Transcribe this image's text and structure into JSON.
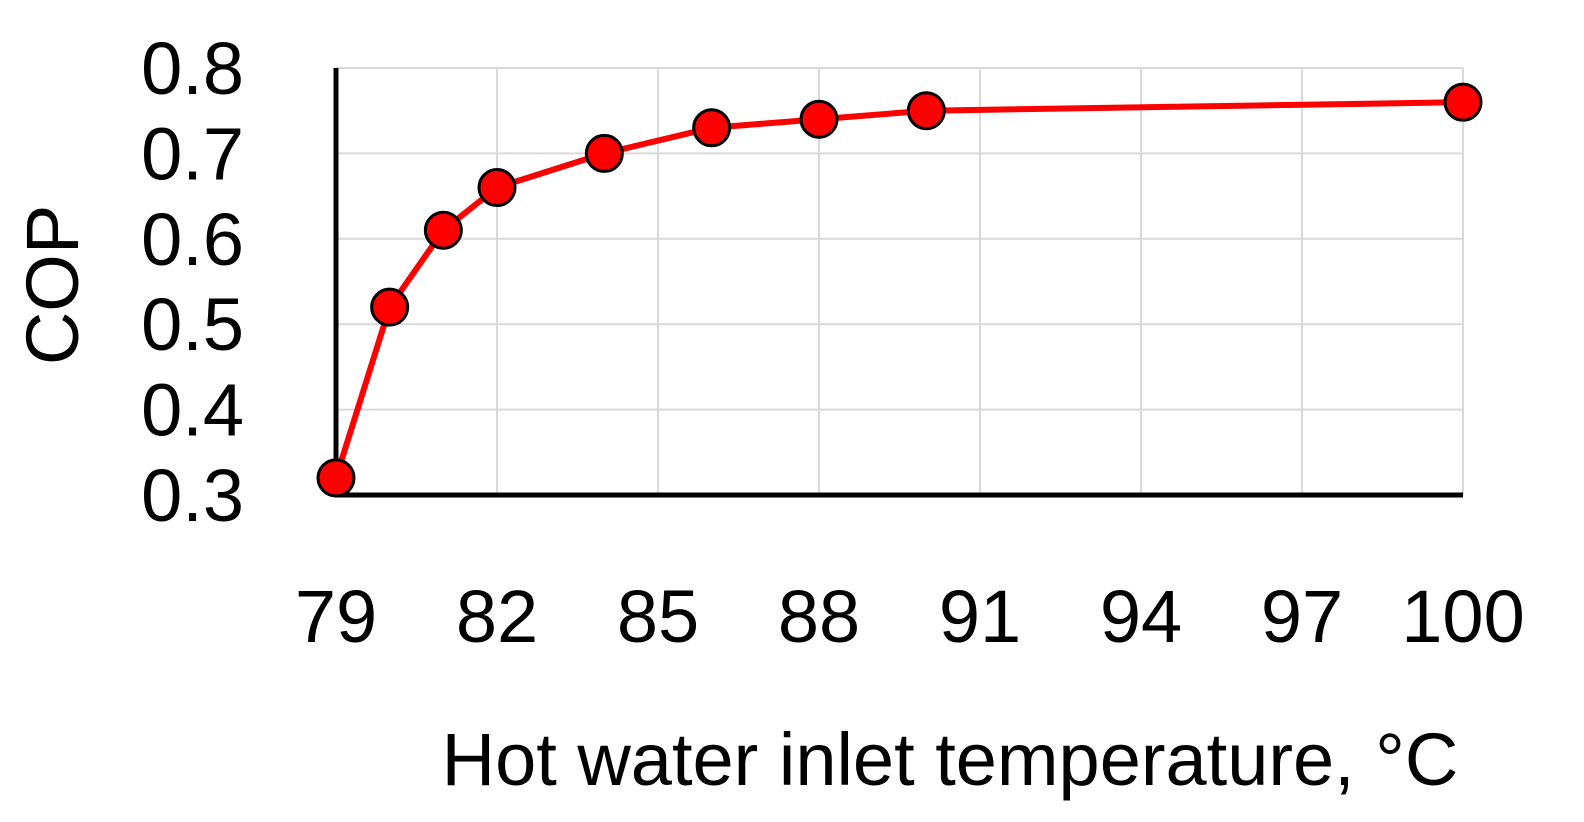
{
  "chart_data": {
    "type": "line",
    "xlabel": "Hot water inlet temperature, °C",
    "ylabel": "COP",
    "xlim": [
      79,
      100
    ],
    "ylim": [
      0.3,
      0.8
    ],
    "x_ticks": [
      79,
      82,
      85,
      88,
      91,
      94,
      97,
      100
    ],
    "y_ticks": [
      0.3,
      0.4,
      0.5,
      0.6,
      0.7,
      0.8
    ],
    "y_tick_labels": [
      "0.3",
      "0.4",
      "0.5",
      "0.6",
      "0.7",
      "0.8"
    ],
    "grid": true,
    "series": [
      {
        "color": "#ff0000",
        "marker_color": "#ff0000",
        "x": [
          79,
          80,
          81,
          82,
          84,
          86,
          88,
          90,
          100
        ],
        "y": [
          0.32,
          0.52,
          0.61,
          0.66,
          0.7,
          0.73,
          0.74,
          0.75,
          0.76
        ]
      }
    ]
  }
}
